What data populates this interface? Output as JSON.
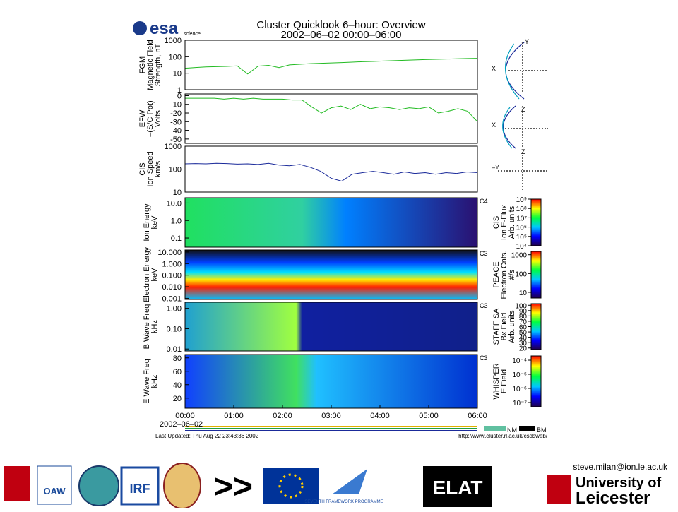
{
  "header": {
    "title": "Cluster Quicklook 6–hour: Overview",
    "subtitle": "2002–06–02 00:00–06:00",
    "logo": "esa",
    "logo_sub": "science"
  },
  "time_ticks": [
    "00:00",
    "01:00",
    "02:00",
    "03:00",
    "04:00",
    "05:00",
    "06:00"
  ],
  "date": "2002–06–02",
  "line_panels": [
    {
      "type": "line",
      "labels": [
        "FGM",
        "Magnetic Field",
        "Strength, nT"
      ],
      "log": true,
      "ylim": [
        1,
        1000
      ],
      "yticks": [
        1,
        10,
        100,
        1000
      ],
      "color": "#22bb22",
      "values": [
        20,
        22,
        24,
        25,
        26,
        28,
        9,
        27,
        30,
        22,
        32,
        35,
        38,
        40,
        42,
        44,
        47,
        50,
        52,
        55,
        58,
        61,
        64,
        67,
        70,
        72,
        75,
        78,
        80
      ]
    },
    {
      "type": "line",
      "labels": [
        "EFW",
        "–(S/C Pot)",
        "Volts"
      ],
      "log": false,
      "ylim": [
        -55,
        2
      ],
      "yticks": [
        0,
        -10,
        -20,
        -30,
        -40,
        -50
      ],
      "color": "#22bb22",
      "values": [
        -3,
        -3,
        -3,
        -3,
        -4,
        -3,
        -4,
        -3,
        -4,
        -4,
        -4,
        -5,
        -5,
        -13,
        -20,
        -14,
        -12,
        -16,
        -10,
        -15,
        -13,
        -14,
        -16,
        -14,
        -15,
        -13,
        -20,
        -18,
        -15,
        -18,
        -30
      ]
    },
    {
      "type": "line",
      "labels": [
        "CIS",
        "Ion Speed",
        "km/s"
      ],
      "log": true,
      "ylim": [
        10,
        1000
      ],
      "yticks": [
        10,
        100,
        1000
      ],
      "color": "#1a2a9a",
      "values": [
        170,
        175,
        170,
        180,
        175,
        165,
        170,
        160,
        180,
        150,
        140,
        160,
        120,
        80,
        40,
        30,
        60,
        70,
        80,
        70,
        60,
        75,
        65,
        70,
        60,
        70,
        65,
        75,
        70
      ]
    }
  ],
  "spec_panels": [
    {
      "type": "spectrogram",
      "labels": [
        "Ion Energy",
        "keV"
      ],
      "spacecraft": "C4",
      "log": true,
      "ylim": [
        0.03,
        20
      ],
      "yticks": [
        {
          "value": 10,
          "label": "10.0"
        },
        {
          "value": 1,
          "label": "1.0"
        },
        {
          "value": 0.1,
          "label": "0.1"
        }
      ],
      "colorbar": {
        "labels": [
          "CIS",
          "Ion E-Flux",
          "Arb. units"
        ],
        "log": true,
        "lim": [
          10000,
          1000000000
        ],
        "ticks": [
          {
            "value": 10000,
            "label": "10⁴"
          },
          {
            "value": 100000,
            "label": "10⁵"
          },
          {
            "value": 1000000,
            "label": "10⁶"
          },
          {
            "value": 10000000,
            "label": "10⁷"
          },
          {
            "value": 100000000,
            "label": "10⁸"
          },
          {
            "value": 1000000000,
            "label": "10⁹"
          }
        ]
      }
    },
    {
      "type": "spectrogram",
      "labels": [
        "Electron Energy",
        "keV"
      ],
      "spacecraft": "C3",
      "log": true,
      "ylim": [
        0.0008,
        15
      ],
      "yticks": [
        {
          "value": 10,
          "label": "10.000"
        },
        {
          "value": 1,
          "label": "1.000"
        },
        {
          "value": 0.1,
          "label": "0.100"
        },
        {
          "value": 0.01,
          "label": "0.010"
        },
        {
          "value": 0.001,
          "label": "0.001"
        }
      ],
      "colorbar": {
        "labels": [
          "PEACE",
          "Electron Cnts.",
          "#/s"
        ],
        "log": true,
        "lim": [
          5,
          1500
        ],
        "ticks": [
          10,
          100,
          1000
        ]
      }
    },
    {
      "type": "spectrogram",
      "labels": [
        "B Wave Freq",
        "kHz"
      ],
      "spacecraft": "C3",
      "log": true,
      "ylim": [
        0.008,
        2
      ],
      "yticks": [
        {
          "value": 1,
          "label": "1.00"
        },
        {
          "value": 0.1,
          "label": "0.10"
        },
        {
          "value": 0.01,
          "label": "0.01"
        }
      ],
      "colorbar": {
        "labels": [
          "STAFF SA",
          "Bx Field",
          "Arb. units"
        ],
        "log": false,
        "lim": [
          17,
          103
        ],
        "ticks": [
          100,
          90,
          80,
          70,
          60,
          50,
          40,
          30,
          20
        ]
      }
    },
    {
      "type": "spectrogram",
      "labels": [
        "E Wave Freq",
        "kHz"
      ],
      "spacecraft": "C3",
      "log": false,
      "ylim": [
        5,
        85
      ],
      "yticks": [
        80,
        60,
        40,
        20
      ],
      "colorbar": {
        "labels": [
          "WHISPER",
          "E Field"
        ],
        "log": true,
        "lim": [
          5e-08,
          0.0002
        ],
        "ticks": [
          {
            "value": 0.0001,
            "label": "10⁻⁴"
          },
          {
            "value": 1e-05,
            "label": "10⁻⁵"
          },
          {
            "value": 1e-06,
            "label": "10⁻⁶"
          },
          {
            "value": 1e-07,
            "label": "10⁻⁷"
          }
        ]
      }
    }
  ],
  "orbit_labels": [
    "–Y",
    "X",
    "Z",
    "X",
    "Z",
    "–Y"
  ],
  "footer": {
    "updated": "Last Updated: Thu Aug 22 23:43:36 2002",
    "url": "http://www.cluster.rl.ac.uk/csdsweb/",
    "modes": [
      "NM",
      "BM"
    ]
  },
  "email": "steve.milan@ion.le.ac.uk",
  "logos": [
    "OAW",
    "IRF",
    ">>",
    "SEVENTH FRAMEWORK PROGRAMME",
    "ELAT",
    "University of",
    "Leicester"
  ]
}
